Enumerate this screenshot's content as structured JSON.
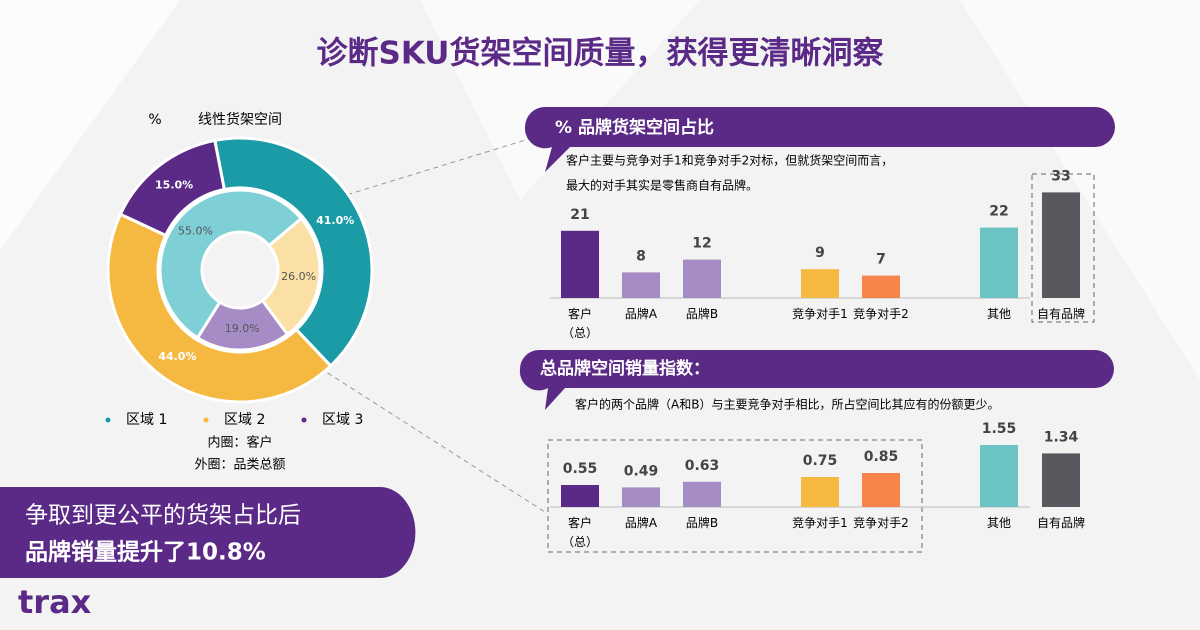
{
  "header": {
    "title": "诊断SKU货架空间质量，获得更清晰洞察"
  },
  "chart_data": [
    {
      "type": "donut",
      "title": "线性货架空间",
      "unit_label": "%",
      "categories": [
        "区域 1",
        "区域 2",
        "区域 3"
      ],
      "legend_colors": [
        "#1a9ba6",
        "#f5b942",
        "#5b2a86"
      ],
      "series": [
        {
          "name": "内圈：客户",
          "colors": [
            "#7ecfd6",
            "#fbe0a6",
            "#a68cc4"
          ],
          "values": [
            55.0,
            26.0,
            19.0
          ],
          "value_labels": [
            "55.0%",
            "26.0%",
            "19.0%"
          ]
        },
        {
          "name": "外圈：品类总额",
          "colors": [
            "#1a9ba6",
            "#f5b942",
            "#5b2a86"
          ],
          "values": [
            41.0,
            44.0,
            15.0
          ],
          "value_labels": [
            "41.0%",
            "44.0%",
            "15.0%"
          ]
        }
      ]
    },
    {
      "type": "bar",
      "title": "% 品牌货架空间占比",
      "notes": [
        "客户主要与竞争对手1和竞争对手2对标，但就货架空间而言，",
        "最大的对手其实是零售商自有品牌。"
      ],
      "categories": [
        "客户\n（总）",
        "品牌A",
        "品牌B",
        "竞争对手1",
        "竞争对手2",
        "其他",
        "自有品牌"
      ],
      "values": [
        21,
        8,
        12,
        9,
        7,
        22,
        33
      ],
      "colors": [
        "#5b2a86",
        "#a68cc4",
        "#a68cc4",
        "#f5b942",
        "#f7844b",
        "#6cc3c4",
        "#58585e"
      ]
    },
    {
      "type": "bar",
      "title": "总品牌空间销量指数：",
      "notes": [
        "客户的两个品牌（A和B）与主要竞争对手相比，所占空间比其应有的份额更少。"
      ],
      "categories": [
        "客户\n（总）",
        "品牌A",
        "品牌B",
        "竞争对手1",
        "竞争对手2",
        "其他",
        "自有品牌"
      ],
      "values": [
        0.55,
        0.49,
        0.63,
        0.75,
        0.85,
        1.55,
        1.34
      ],
      "colors": [
        "#5b2a86",
        "#a68cc4",
        "#a68cc4",
        "#f5b942",
        "#f7844b",
        "#6cc3c4",
        "#58585e"
      ]
    }
  ],
  "callout": {
    "lines": [
      "争取到更公平的货架占比后",
      "品牌销量提升了10.8%"
    ]
  },
  "logo": {
    "text": "trax"
  }
}
